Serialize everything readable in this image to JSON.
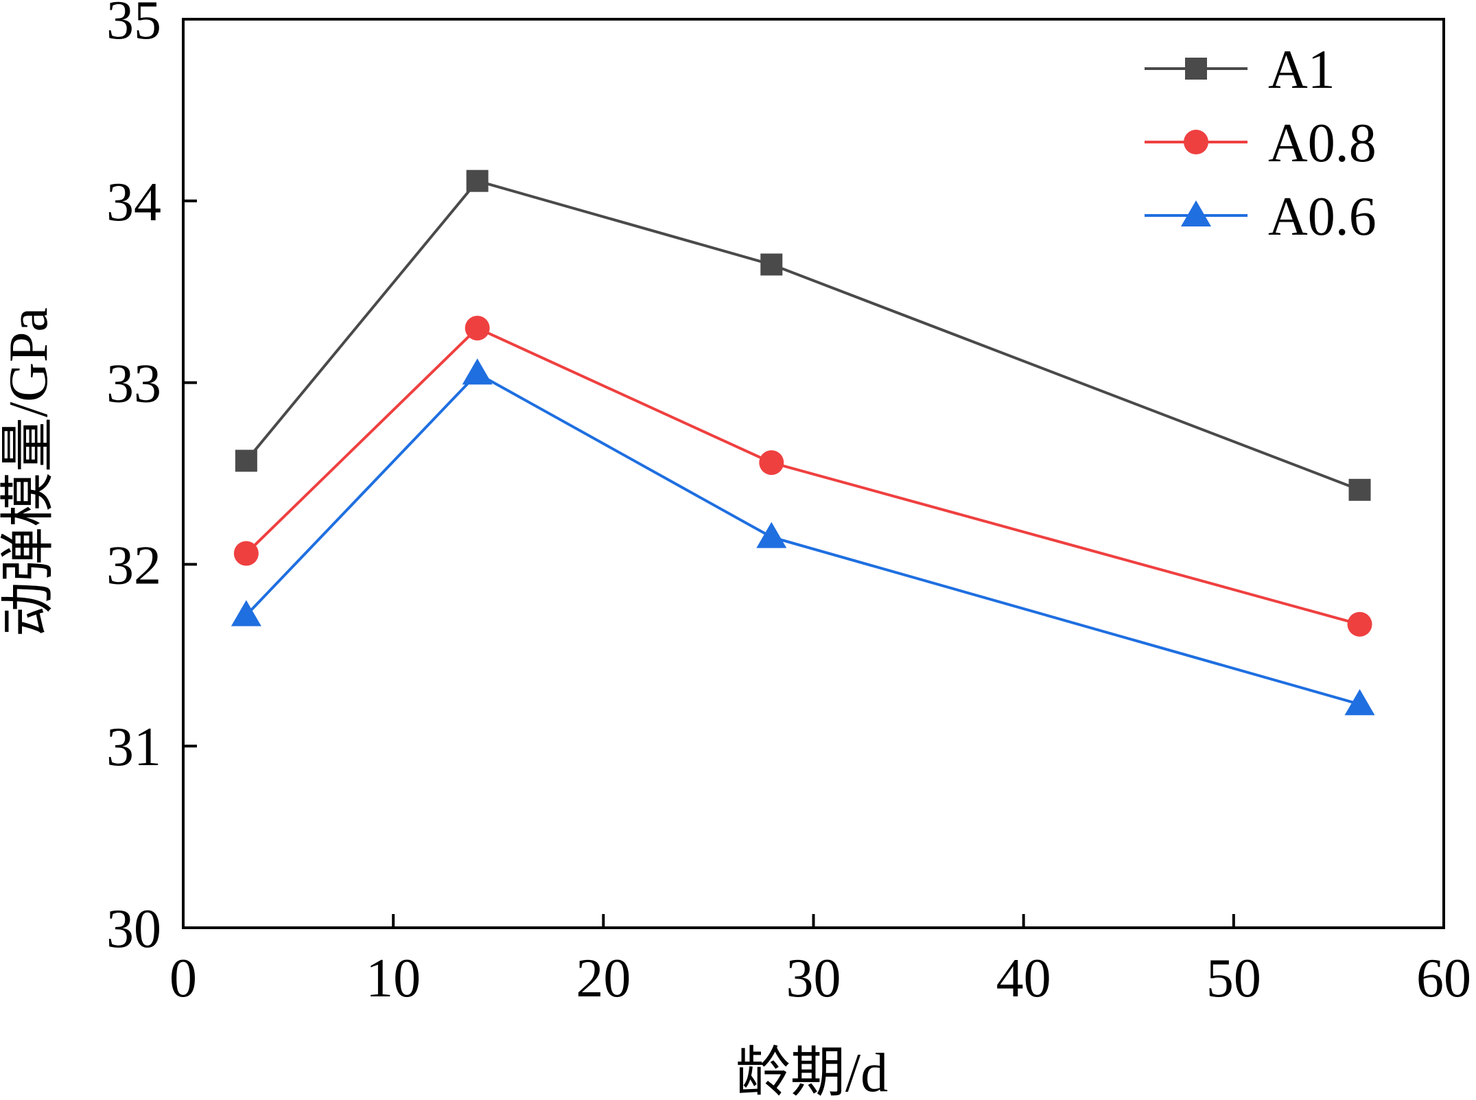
{
  "chart_data": {
    "type": "line",
    "title": "",
    "xlabel": "龄期/d",
    "ylabel": "动弹模量/GPa",
    "xlim": [
      0,
      60
    ],
    "ylim": [
      30,
      35
    ],
    "xticks": [
      "0",
      "10",
      "20",
      "30",
      "40",
      "50",
      "60"
    ],
    "yticks": [
      "30",
      "31",
      "32",
      "33",
      "34",
      "35"
    ],
    "grid": false,
    "legend_position": "top-right",
    "x": [
      3,
      14,
      28,
      56
    ],
    "series": [
      {
        "name": "A1",
        "marker": "square",
        "color": "#4a4a4a",
        "values": [
          32.57,
          34.11,
          33.65,
          32.41
        ]
      },
      {
        "name": "A0.8",
        "marker": "circle",
        "color": "#ef4040",
        "values": [
          32.06,
          33.3,
          32.56,
          31.67
        ]
      },
      {
        "name": "A0.6",
        "marker": "triangle",
        "color": "#1f6fe0",
        "values": [
          31.72,
          33.05,
          32.15,
          31.23
        ]
      }
    ]
  }
}
